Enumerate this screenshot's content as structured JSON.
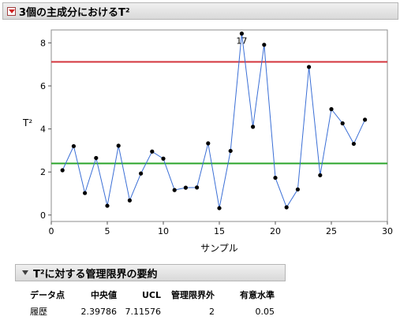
{
  "outline": {
    "chart_title": "3個の主成分におけるT²",
    "summary_title": "T²に対する管理限界の要約"
  },
  "summary": {
    "headers": [
      "データ点",
      "中央値",
      "UCL",
      "管理限界外",
      "有意水準"
    ],
    "rows": [
      [
        "履歴",
        "2.39786",
        "7.11576",
        "2",
        "0.05"
      ]
    ]
  },
  "colors": {
    "ucl": "#d3343c",
    "center": "#2aa52a",
    "series": "#3b6fd6",
    "point": "#000000"
  },
  "chart_data": {
    "type": "line",
    "xlabel": "サンプル",
    "ylabel": "T²",
    "xlim": [
      0,
      30
    ],
    "ylim": [
      -0.3,
      8.6
    ],
    "x_ticks": [
      0,
      5,
      10,
      15,
      20,
      25,
      30
    ],
    "y_ticks": [
      0,
      2,
      4,
      6,
      8
    ],
    "center_line": 2.39786,
    "ucl": 7.11576,
    "series": [
      {
        "x": [
          1,
          2,
          3,
          4,
          5,
          6,
          7,
          8,
          9,
          10,
          11,
          12,
          13,
          14,
          15,
          16,
          17,
          18,
          19,
          20,
          21,
          22,
          23,
          24,
          25,
          26,
          27,
          28
        ],
        "values": [
          2.08,
          3.2,
          1.02,
          2.65,
          0.43,
          3.22,
          0.68,
          1.93,
          2.95,
          2.62,
          1.16,
          1.27,
          1.28,
          3.33,
          0.32,
          2.98,
          8.43,
          4.1,
          7.91,
          1.73,
          0.36,
          1.19,
          6.88,
          1.85,
          4.92,
          4.26,
          3.31,
          4.43
        ]
      }
    ],
    "annotations": [
      {
        "x": 17,
        "label": "17"
      }
    ]
  }
}
